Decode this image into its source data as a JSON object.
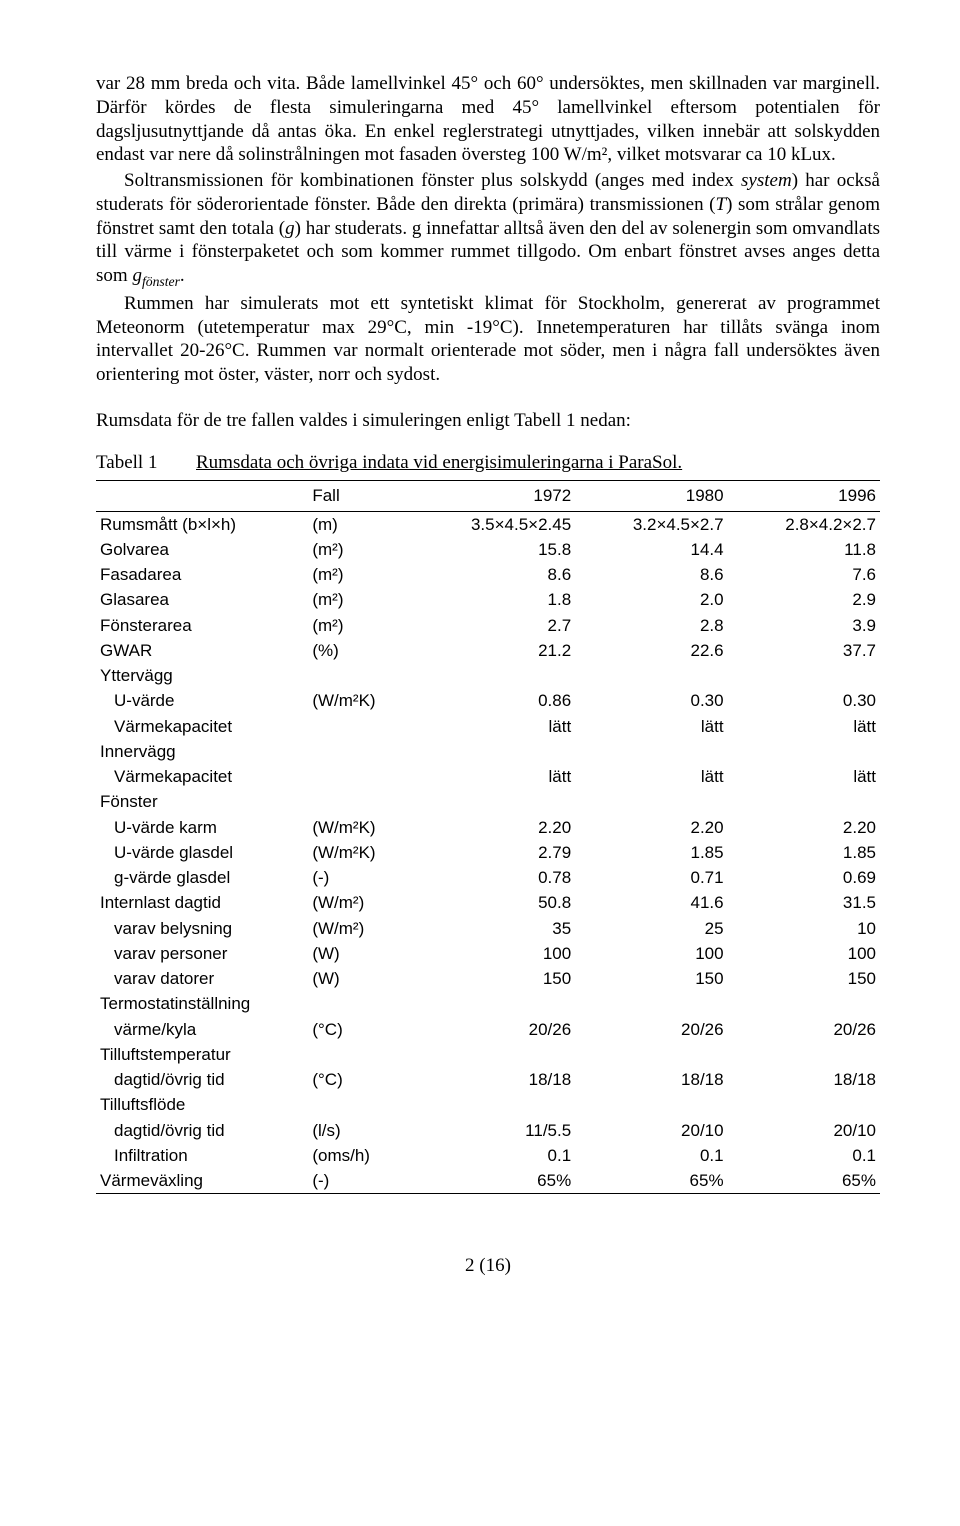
{
  "paragraphs": {
    "p1a": "var 28 mm breda och vita. Både lamellvinkel 45° och 60° undersöktes, men skillnaden var marginell. Därför kördes de flesta simuleringarna med 45° lamellvinkel eftersom potentialen för dagsljusutnyttjande då antas öka. En enkel reglerstrategi utnyttjades, vilken innebär att solskydden endast var nere då solinstrålningen mot fasaden översteg 100 W/m², vilket motsvarar ca 10 kLux.",
    "p2a": "Soltransmissionen för kombinationen fönster plus solskydd (anges med index ",
    "p2b": ") har också studerats för söderorientade fönster. Både den direkta (primära) transmissionen (",
    "p2c": ") som strålar genom fönstret samt den totala (",
    "p2d": ") har studerats. g innefattar alltså även den del av solenergin som omvandlats till värme i fönsterpaketet och som kommer rummet tillgodo. Om enbart fönstret avses anges detta som ",
    "p3": "Rummen har simulerats mot ett syntetiskt klimat för Stockholm, genererat av programmet Meteonorm (utetemperatur max 29°C, min -19°C). Innetemperaturen har tillåts svänga inom intervallet 20-26°C. Rummen var normalt orienterade mot söder, men i några fall undersöktes även orientering mot öster, väster, norr och sydost.",
    "p4": "Rumsdata för de tre fallen valdes i simuleringen enligt Tabell 1 nedan:",
    "system": "system",
    "T": "T",
    "g": "g",
    "gfon_g": "g",
    "gfon_sub": "fönster",
    "dot": "."
  },
  "table": {
    "label": "Tabell 1",
    "caption": "Rumsdata och övriga indata vid energisimuleringarna i ParaSol.",
    "head": {
      "fall": "Fall",
      "c1": "1972",
      "c2": "1980",
      "c3": "1996"
    },
    "rows": [
      {
        "lbl": "Rumsmått (b×l×h)",
        "unit": "(m)",
        "v1": "3.5×4.5×2.45",
        "v2": "3.2×4.5×2.7",
        "v3": "2.8×4.2×2.7",
        "cls": ""
      },
      {
        "lbl": "Golvarea",
        "unit": "(m²)",
        "v1": "15.8",
        "v2": "14.4",
        "v3": "11.8",
        "cls": ""
      },
      {
        "lbl": "Fasadarea",
        "unit": "(m²)",
        "v1": "8.6",
        "v2": "8.6",
        "v3": "7.6",
        "cls": ""
      },
      {
        "lbl": "Glasarea",
        "unit": "(m²)",
        "v1": "1.8",
        "v2": "2.0",
        "v3": "2.9",
        "cls": ""
      },
      {
        "lbl": "Fönsterarea",
        "unit": "(m²)",
        "v1": "2.7",
        "v2": "2.8",
        "v3": "3.9",
        "cls": ""
      },
      {
        "lbl": "GWAR",
        "unit": "(%)",
        "v1": "21.2",
        "v2": "22.6",
        "v3": "37.7",
        "cls": ""
      },
      {
        "lbl": "Yttervägg",
        "unit": "",
        "v1": "",
        "v2": "",
        "v3": "",
        "cls": ""
      },
      {
        "lbl": "U-värde",
        "unit": "(W/m²K)",
        "v1": "0.86",
        "v2": "0.30",
        "v3": "0.30",
        "cls": "i"
      },
      {
        "lbl": "Värmekapacitet",
        "unit": "",
        "v1": "lätt",
        "v2": "lätt",
        "v3": "lätt",
        "cls": "i"
      },
      {
        "lbl": "Innervägg",
        "unit": "",
        "v1": "",
        "v2": "",
        "v3": "",
        "cls": ""
      },
      {
        "lbl": "Värmekapacitet",
        "unit": "",
        "v1": "lätt",
        "v2": "lätt",
        "v3": "lätt",
        "cls": "i"
      },
      {
        "lbl": "Fönster",
        "unit": "",
        "v1": "",
        "v2": "",
        "v3": "",
        "cls": ""
      },
      {
        "lbl": "U-värde karm",
        "unit": "(W/m²K)",
        "v1": "2.20",
        "v2": "2.20",
        "v3": "2.20",
        "cls": "i"
      },
      {
        "lbl": "U-värde glasdel",
        "unit": "(W/m²K)",
        "v1": "2.79",
        "v2": "1.85",
        "v3": "1.85",
        "cls": "i"
      },
      {
        "lbl": "g-värde glasdel",
        "unit": "(-)",
        "v1": "0.78",
        "v2": "0.71",
        "v3": "0.69",
        "cls": "i"
      },
      {
        "lbl": "Internlast dagtid",
        "unit": "(W/m²)",
        "v1": "50.8",
        "v2": "41.6",
        "v3": "31.5",
        "cls": ""
      },
      {
        "lbl": "varav belysning",
        "unit": "(W/m²)",
        "v1": "35",
        "v2": "25",
        "v3": "10",
        "cls": "i"
      },
      {
        "lbl": "varav personer",
        "unit": "(W)",
        "v1": "100",
        "v2": "100",
        "v3": "100",
        "cls": "i"
      },
      {
        "lbl": "varav datorer",
        "unit": "(W)",
        "v1": "150",
        "v2": "150",
        "v3": "150",
        "cls": "i"
      },
      {
        "lbl": "Termostatinställning",
        "unit": "",
        "v1": "",
        "v2": "",
        "v3": "",
        "cls": ""
      },
      {
        "lbl": "värme/kyla",
        "unit": "(°C)",
        "v1": "20/26",
        "v2": "20/26",
        "v3": "20/26",
        "cls": "i"
      },
      {
        "lbl": "Tilluftstemperatur",
        "unit": "",
        "v1": "",
        "v2": "",
        "v3": "",
        "cls": ""
      },
      {
        "lbl": "dagtid/övrig tid",
        "unit": "(°C)",
        "v1": "18/18",
        "v2": "18/18",
        "v3": "18/18",
        "cls": "i"
      },
      {
        "lbl": "Tilluftsflöde",
        "unit": "",
        "v1": "",
        "v2": "",
        "v3": "",
        "cls": ""
      },
      {
        "lbl": "dagtid/övrig tid",
        "unit": "(l/s)",
        "v1": "11/5.5",
        "v2": "20/10",
        "v3": "20/10",
        "cls": "i"
      },
      {
        "lbl": "Infiltration",
        "unit": "(oms/h)",
        "v1": "0.1",
        "v2": "0.1",
        "v3": "0.1",
        "cls": "i"
      },
      {
        "lbl": "Värmeväxling",
        "unit": "(-)",
        "v1": "65%",
        "v2": "65%",
        "v3": "65%",
        "cls": "last"
      }
    ]
  },
  "pagenum": "2 (16)"
}
